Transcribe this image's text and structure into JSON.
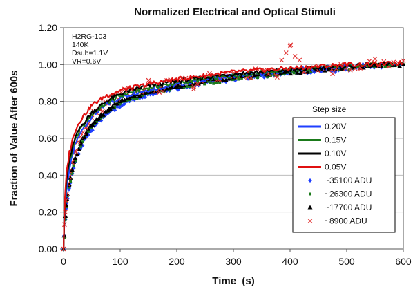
{
  "chart_data": {
    "type": "scatter",
    "title": "Normalized Electrical and Optical Stimuli",
    "xlabel": "Time  (s)",
    "ylabel": "Fraction of Value After 600s",
    "xlim": [
      0,
      600
    ],
    "ylim": [
      0,
      1.2
    ],
    "xticks": [
      "0",
      "100",
      "200",
      "300",
      "400",
      "500",
      "600"
    ],
    "yticks": [
      "0.00",
      "0.20",
      "0.40",
      "0.60",
      "0.80",
      "1.00",
      "1.20"
    ],
    "annotation": [
      "H2RG-103",
      "140K",
      "Dsub=1.1V",
      "VR=0.6V"
    ],
    "legend_title": "Step size",
    "legend_position": "center-right",
    "series": [
      {
        "name": "0.20V",
        "style": "line",
        "color": "#1f3fff",
        "x": [
          0,
          2,
          5,
          10,
          20,
          30,
          50,
          75,
          100,
          130,
          160,
          200,
          250,
          300,
          350,
          400,
          450,
          500,
          550,
          600
        ],
        "y": [
          0.0,
          0.2,
          0.32,
          0.43,
          0.56,
          0.63,
          0.72,
          0.78,
          0.82,
          0.85,
          0.87,
          0.89,
          0.92,
          0.94,
          0.95,
          0.97,
          0.98,
          0.99,
          1.0,
          1.0
        ]
      },
      {
        "name": "0.15V",
        "style": "line",
        "color": "#1a7a1a",
        "x": [
          0,
          2,
          5,
          10,
          20,
          30,
          50,
          75,
          100,
          130,
          160,
          200,
          250,
          300,
          350,
          400,
          450,
          500,
          550,
          600
        ],
        "y": [
          0.0,
          0.22,
          0.36,
          0.47,
          0.59,
          0.65,
          0.73,
          0.79,
          0.83,
          0.86,
          0.88,
          0.9,
          0.92,
          0.94,
          0.96,
          0.97,
          0.98,
          0.99,
          1.0,
          1.0
        ]
      },
      {
        "name": "0.10V",
        "style": "line",
        "color": "#000000",
        "x": [
          0,
          2,
          5,
          10,
          20,
          30,
          50,
          75,
          100,
          130,
          160,
          200,
          250,
          300,
          350,
          400,
          450,
          500,
          550,
          600
        ],
        "y": [
          0.0,
          0.23,
          0.37,
          0.48,
          0.6,
          0.66,
          0.74,
          0.8,
          0.84,
          0.87,
          0.89,
          0.91,
          0.93,
          0.95,
          0.96,
          0.97,
          0.98,
          0.99,
          1.0,
          1.0
        ]
      },
      {
        "name": "0.05V",
        "style": "line",
        "color": "#e01010",
        "x": [
          0,
          2,
          5,
          10,
          20,
          30,
          50,
          75,
          100,
          130,
          160,
          200,
          250,
          300,
          350,
          400,
          450,
          500,
          550,
          600
        ],
        "y": [
          0.0,
          0.25,
          0.4,
          0.52,
          0.64,
          0.7,
          0.78,
          0.83,
          0.86,
          0.88,
          0.9,
          0.92,
          0.94,
          0.96,
          0.97,
          0.98,
          0.99,
          1.0,
          1.0,
          1.01
        ]
      },
      {
        "name": "~35100 ADU",
        "style": "diamond",
        "color": "#1f3fff",
        "x": [
          0,
          3,
          6,
          10,
          15,
          20,
          30,
          40,
          50,
          65,
          80,
          100,
          125,
          150,
          175,
          200,
          225,
          250,
          275,
          300,
          330,
          360,
          390,
          420,
          450,
          480,
          510,
          540,
          570,
          600
        ],
        "y": [
          0.0,
          0.16,
          0.25,
          0.33,
          0.41,
          0.47,
          0.55,
          0.61,
          0.65,
          0.7,
          0.74,
          0.78,
          0.81,
          0.84,
          0.86,
          0.87,
          0.89,
          0.9,
          0.91,
          0.92,
          0.93,
          0.94,
          0.95,
          0.96,
          0.97,
          0.97,
          0.98,
          0.99,
          0.99,
          1.0
        ]
      },
      {
        "name": "~26300 ADU",
        "style": "square",
        "color": "#1a7a1a",
        "x": [
          0,
          3,
          6,
          10,
          15,
          20,
          30,
          40,
          50,
          65,
          80,
          100,
          125,
          150,
          175,
          200,
          225,
          250,
          275,
          300,
          330,
          360,
          390,
          420,
          450,
          480,
          510,
          540,
          570,
          600
        ],
        "y": [
          0.0,
          0.17,
          0.26,
          0.34,
          0.42,
          0.48,
          0.56,
          0.62,
          0.66,
          0.71,
          0.75,
          0.79,
          0.82,
          0.85,
          0.86,
          0.88,
          0.89,
          0.9,
          0.91,
          0.92,
          0.93,
          0.94,
          0.95,
          0.96,
          0.97,
          0.98,
          0.98,
          0.99,
          0.99,
          1.0
        ]
      },
      {
        "name": "~17700 ADU",
        "style": "triangle",
        "color": "#000000",
        "x": [
          0,
          3,
          6,
          10,
          15,
          20,
          30,
          40,
          50,
          65,
          80,
          100,
          125,
          150,
          175,
          200,
          225,
          250,
          275,
          300,
          330,
          360,
          390,
          420,
          450,
          480,
          510,
          540,
          570,
          600
        ],
        "y": [
          0.0,
          0.18,
          0.27,
          0.35,
          0.43,
          0.49,
          0.57,
          0.63,
          0.67,
          0.72,
          0.76,
          0.8,
          0.83,
          0.85,
          0.87,
          0.88,
          0.9,
          0.91,
          0.92,
          0.93,
          0.94,
          0.95,
          0.96,
          0.96,
          0.97,
          0.98,
          0.99,
          0.99,
          1.0,
          1.0
        ]
      },
      {
        "name": "~8900 ADU",
        "style": "x",
        "color": "#e03030",
        "x": [
          0,
          3,
          6,
          10,
          15,
          20,
          30,
          40,
          50,
          65,
          80,
          100,
          115,
          130,
          150,
          170,
          190,
          210,
          230,
          250,
          275,
          300,
          325,
          350,
          375,
          400,
          425,
          450,
          475,
          500,
          525,
          550,
          575,
          600
        ],
        "y": [
          0.0,
          0.2,
          0.3,
          0.39,
          0.47,
          0.53,
          0.61,
          0.66,
          0.71,
          0.76,
          0.8,
          0.84,
          0.87,
          0.86,
          0.89,
          0.87,
          0.9,
          0.92,
          0.88,
          0.94,
          0.92,
          0.95,
          0.93,
          0.97,
          0.94,
          1.1,
          0.96,
          0.99,
          0.95,
          1.0,
          0.98,
          1.03,
          0.99,
          1.02
        ]
      }
    ]
  }
}
